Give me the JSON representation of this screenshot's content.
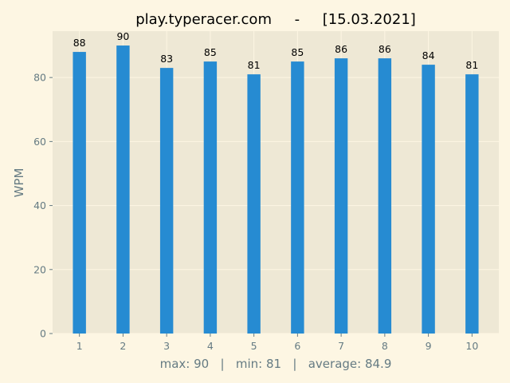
{
  "chart_data": {
    "type": "bar",
    "title": "play.typeracer.com     -     [15.03.2021]",
    "xlabel": "max: 90   |   min: 81   |   average: 84.9",
    "ylabel": "WPM",
    "categories": [
      "1",
      "2",
      "3",
      "4",
      "5",
      "6",
      "7",
      "8",
      "9",
      "10"
    ],
    "values": [
      88,
      90,
      83,
      85,
      81,
      85,
      86,
      86,
      84,
      81
    ],
    "yticks": [
      0,
      20,
      40,
      60,
      80
    ],
    "ylim": [
      0,
      94.5
    ],
    "grid": true,
    "colors": {
      "bar": "#268bd2",
      "plot_background": "#eee8d5",
      "figure_background": "#fdf6e3",
      "grid": "#fdf6e3",
      "tick_text": "#657b83"
    }
  }
}
